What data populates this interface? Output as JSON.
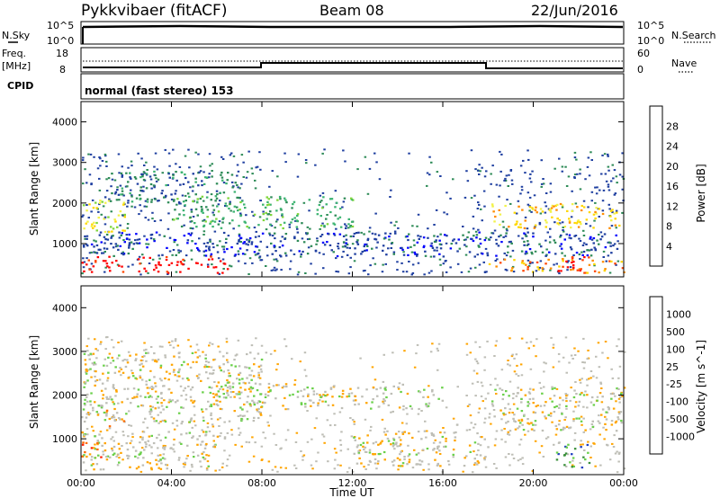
{
  "header": {
    "radar": "Pykkvibaer (fitACF)",
    "beam": "Beam 08",
    "date": "22/Jun/2016"
  },
  "noise_panel": {
    "left_label": "N.Sky",
    "right_label": "N.Search",
    "left_ticks": [
      "10^5",
      "10^0"
    ],
    "right_ticks": [
      "10^5",
      "10^0"
    ]
  },
  "freq_panel": {
    "left_label_1": "Freq.",
    "left_label_2": "[MHz]",
    "right_label": "Nave",
    "left_ticks": [
      "18",
      "8"
    ],
    "right_ticks": [
      "60",
      "0"
    ]
  },
  "cpid_panel": {
    "label": "CPID",
    "text": "normal (fast stereo) 153"
  },
  "colors": {
    "power": [
      "#0000ff",
      "#1f3fa0",
      "#2e8b57",
      "#3cb371",
      "#7fd63a",
      "#f2f24a",
      "#ffd700",
      "#ff8c00",
      "#ff4500",
      "#ff0000"
    ],
    "velocity": [
      "#2040c0",
      "#3a8f3a",
      "#6ad04a",
      "#bebeb6",
      "#ffa500",
      "#ff6a00",
      "#ff2000"
    ]
  },
  "chart_data": [
    {
      "type": "heatmap",
      "name": "power",
      "xlabel": "",
      "ylabel": "Slant Range [km]",
      "xlim": [
        0,
        24
      ],
      "ylim": [
        180,
        4500
      ],
      "yticks": [
        1000,
        2000,
        3000,
        4000
      ],
      "colorbar_label": "Power [dB]",
      "colorbar_ticks": [
        "28",
        "24",
        "20",
        "16",
        "12",
        "8",
        "4"
      ],
      "bands": [
        {
          "x0": 0.0,
          "x1": 6.5,
          "r0": 300,
          "r1": 700,
          "level": 9
        },
        {
          "x0": 0.0,
          "x1": 2.0,
          "r0": 1300,
          "r1": 2100,
          "level": 5
        },
        {
          "x0": 1.0,
          "x1": 7.0,
          "r0": 2000,
          "r1": 2800,
          "level": 2
        },
        {
          "x0": 4.0,
          "x1": 12.0,
          "r0": 1400,
          "r1": 2200,
          "level": 3
        },
        {
          "x0": 0.0,
          "x1": 24.0,
          "r0": 700,
          "r1": 1300,
          "level": 1
        },
        {
          "x0": 18.0,
          "x1": 24.0,
          "r0": 1400,
          "r1": 2000,
          "level": 6
        },
        {
          "x0": 18.0,
          "x1": 24.0,
          "r0": 300,
          "r1": 650,
          "level": 7
        },
        {
          "x0": 21.0,
          "x1": 22.5,
          "r0": 300,
          "r1": 700,
          "level": 9
        }
      ]
    },
    {
      "type": "heatmap",
      "name": "velocity",
      "xlabel": "Time UT",
      "ylabel": "Slant Range [km]",
      "xlim": [
        0,
        24
      ],
      "ylim": [
        180,
        4500
      ],
      "yticks": [
        1000,
        2000,
        3000,
        4000
      ],
      "xticks": [
        "00:00",
        "04:00",
        "08:00",
        "12:00",
        "16:00",
        "20:00",
        "00:00"
      ],
      "colorbar_label": "Velocity [m s^-1]",
      "colorbar_ticks": [
        "1000",
        "500",
        "100",
        "25",
        "-25",
        "-100",
        "-500",
        "-1000"
      ],
      "bands": [
        {
          "x0": 0.0,
          "x1": 8.0,
          "r0": 1400,
          "r1": 3000,
          "level": 3
        },
        {
          "x0": 0.0,
          "x1": 6.0,
          "r0": 300,
          "r1": 1200,
          "level": 3
        },
        {
          "x0": 1.0,
          "x1": 2.0,
          "r0": 1300,
          "r1": 1700,
          "level": 4
        },
        {
          "x0": 6.0,
          "x1": 16.0,
          "r0": 1700,
          "r1": 2300,
          "level": 3
        },
        {
          "x0": 12.0,
          "x1": 18.0,
          "r0": 400,
          "r1": 1200,
          "level": 3
        },
        {
          "x0": 18.0,
          "x1": 24.0,
          "r0": 1200,
          "r1": 2200,
          "level": 3
        },
        {
          "x0": 21.0,
          "x1": 22.5,
          "r0": 300,
          "r1": 900,
          "level": 1
        },
        {
          "x0": 0.0,
          "x1": 1.0,
          "r0": 600,
          "r1": 1000,
          "level": 5
        }
      ]
    }
  ]
}
